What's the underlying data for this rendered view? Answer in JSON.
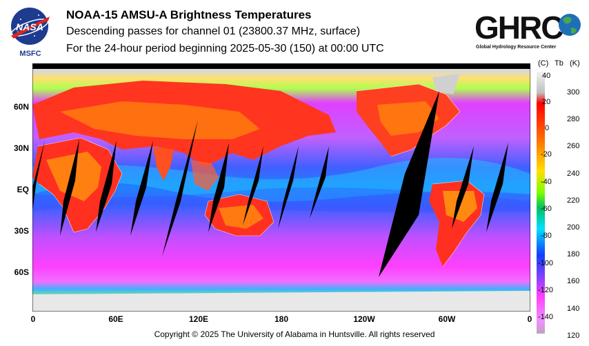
{
  "header": {
    "title": "NOAA-15 AMSU-A Brightness Temperatures",
    "subtitle": "Descending passes for channel 01 (23800.37 MHz, surface)",
    "period": "For the 24-hour period beginning 2025-05-30 (150) at 00:00 UTC"
  },
  "logos": {
    "nasa_text": "NASA",
    "msfc_text": "MSFC",
    "ghrc_text": "GHRC",
    "ghrc_subtitle": "Global Hydrology Resource Center"
  },
  "map": {
    "lat_labels": [
      "60N",
      "30N",
      "EQ",
      "30S",
      "60S"
    ],
    "lon_labels": [
      "0",
      "60E",
      "120E",
      "180",
      "120W",
      "60W",
      "0"
    ],
    "data_gap_color": "#000000"
  },
  "colorbar": {
    "unit_left": "(C)",
    "unit_mid": "Tb",
    "unit_right": "(K)",
    "celsius_ticks": [
      "40",
      "20",
      "0",
      "-20",
      "-40",
      "-60",
      "-80",
      "-100",
      "-120",
      "-140"
    ],
    "kelvin_ticks": [
      "300",
      "280",
      "260",
      "240",
      "220",
      "200",
      "180",
      "160",
      "140",
      "120"
    ],
    "range_k": [
      120,
      310
    ]
  },
  "footer": {
    "copyright": "Copyright © 2025 The University of Alabama in Huntsville.  All rights reserved"
  }
}
